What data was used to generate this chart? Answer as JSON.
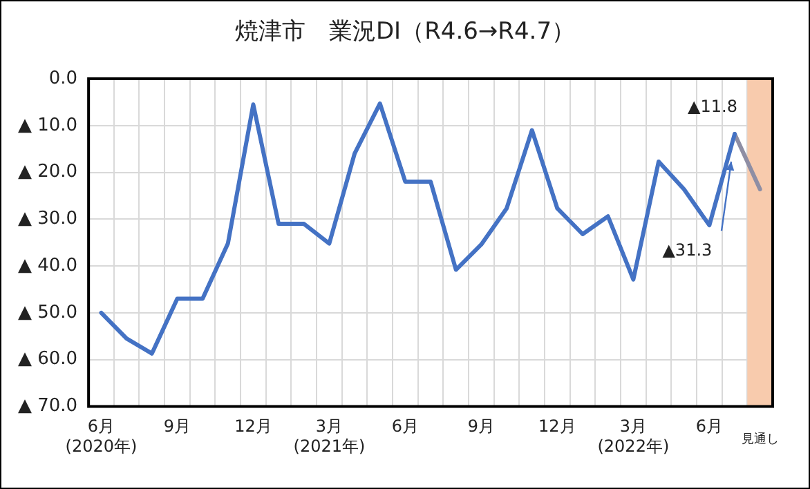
{
  "chart_data": {
    "type": "line",
    "title": "焼津市　業況DI（R4.6→R4.7）",
    "categories": [
      "6月\n(2020年)",
      null,
      null,
      "9月",
      null,
      null,
      "12月",
      null,
      null,
      "3月\n(2021年)",
      null,
      null,
      "6月",
      null,
      null,
      "9月",
      null,
      null,
      "12月",
      null,
      null,
      "3月\n(2022年)",
      null,
      null,
      "6月",
      null,
      "\n見通し"
    ],
    "series": [
      {
        "color": "#4472c4",
        "values": [
          50,
          55.5,
          58.7,
          47,
          47,
          35.2,
          5.5,
          31,
          31,
          35.2,
          16,
          5.3,
          22,
          22,
          40.8,
          35.4,
          27.7,
          11,
          27.7,
          33.2,
          29.4,
          42.9,
          17.7,
          23.6,
          31.3,
          11.8,
          null
        ],
        "value_labels": [
          null,
          null,
          null,
          null,
          null,
          null,
          null,
          null,
          null,
          null,
          null,
          null,
          null,
          null,
          null,
          null,
          null,
          null,
          null,
          null,
          null,
          null,
          null,
          null,
          "▲31.3",
          "▲11.8",
          null
        ]
      },
      {
        "color": "#8e8ea4",
        "values": [
          null,
          null,
          null,
          null,
          null,
          null,
          null,
          null,
          null,
          null,
          null,
          null,
          null,
          null,
          null,
          null,
          null,
          null,
          null,
          null,
          null,
          null,
          null,
          null,
          null,
          11.8,
          23.6
        ]
      }
    ],
    "ylim": [
      70,
      0
    ],
    "yticks": [
      {
        "value": 0,
        "label": "0.0"
      },
      {
        "value": 10,
        "label": "▲ 10.0"
      },
      {
        "value": 20,
        "label": "▲ 20.0"
      },
      {
        "value": 30,
        "label": "▲ 30.0"
      },
      {
        "value": 40,
        "label": "▲ 40.0"
      },
      {
        "value": 50,
        "label": "▲ 50.0"
      },
      {
        "value": 60,
        "label": "▲ 60.0"
      },
      {
        "value": 70,
        "label": "▲ 70.0"
      }
    ],
    "bands": [
      {
        "axis": "x",
        "from": "\n見通し",
        "to": "\n見通し",
        "color": "#f8cbad"
      }
    ],
    "grid": true,
    "legend": false,
    "marker": "none",
    "line_style": "solid"
  }
}
